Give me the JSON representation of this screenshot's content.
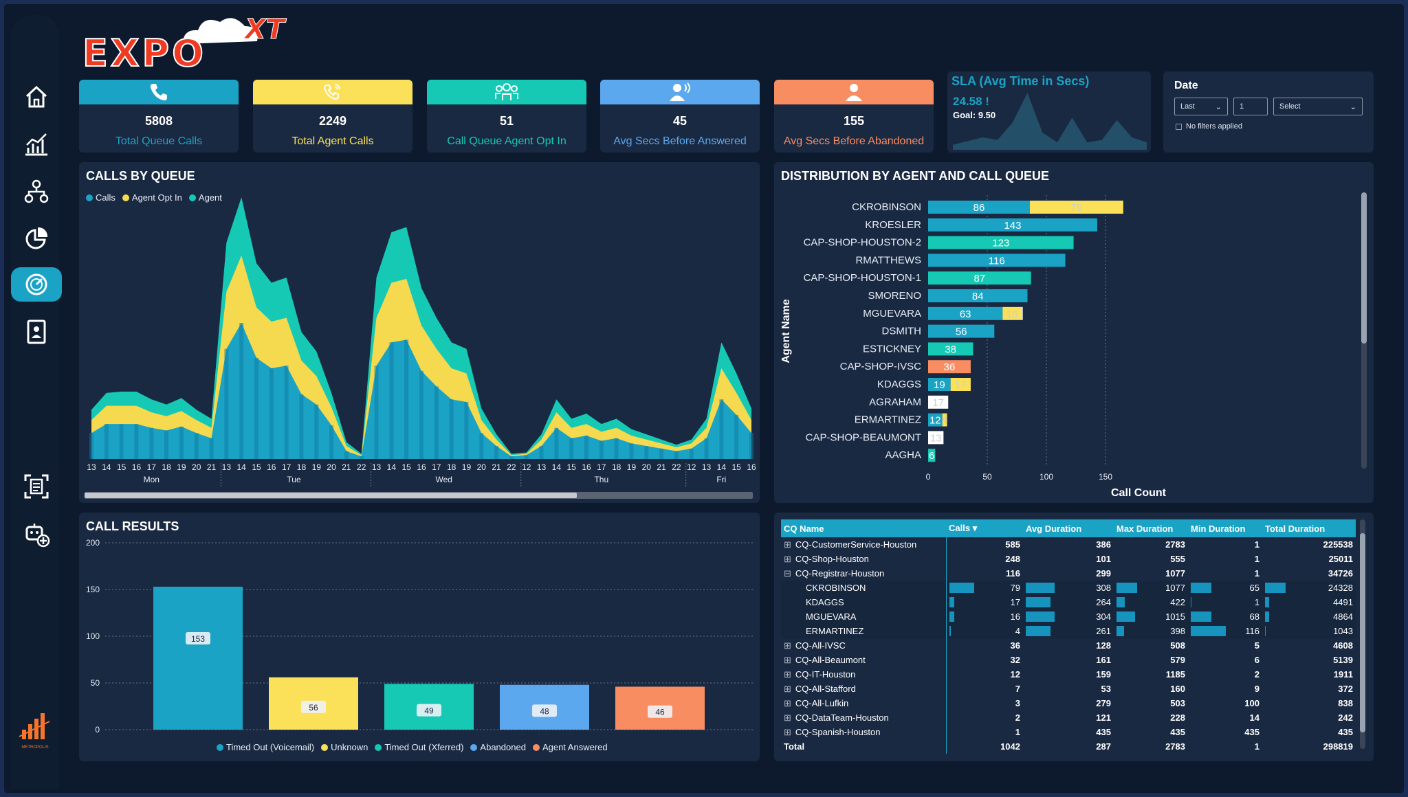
{
  "brand": {
    "logo_text": "EXPO",
    "logo_suffix": "XT",
    "footer_logo_text": "METROPOLIS"
  },
  "colors": {
    "calls": "#1ba3c6",
    "agent_opt_in": "#f5d94e",
    "agent": "#16c9b5",
    "abandoned": "#5ba8ee",
    "agent_answered": "#f98d62",
    "unknown": "#fbe05a"
  },
  "nav": [
    {
      "name": "home-icon"
    },
    {
      "name": "analytics-icon"
    },
    {
      "name": "org-chart-icon"
    },
    {
      "name": "pie-chart-icon"
    },
    {
      "name": "gauge-icon"
    },
    {
      "name": "contact-card-icon"
    },
    {
      "name": "report-scan-icon"
    },
    {
      "name": "bot-add-icon"
    }
  ],
  "kpis": [
    {
      "value": "5808",
      "label": "Total Queue Calls",
      "head_color": "#1ba3c6",
      "label_color": "#1ba3c6",
      "icon": "phone-icon"
    },
    {
      "value": "2249",
      "label": "Total Agent Calls",
      "head_color": "#fbe05a",
      "label_color": "#fbe05a",
      "icon": "phone-ringing-icon"
    },
    {
      "value": "51",
      "label": "Call Queue Agent Opt In",
      "head_color": "#16c9b5",
      "label_color": "#16c9b5",
      "icon": "group-icon"
    },
    {
      "value": "45",
      "label": "Avg Secs Before Answered",
      "head_color": "#5ba8ee",
      "label_color": "#5ba8ee",
      "icon": "speaker-person-icon"
    },
    {
      "value": "155",
      "label": "Avg Secs Before Abandoned",
      "head_color": "#f98d62",
      "label_color": "#f98d62",
      "icon": "person-icon"
    }
  ],
  "sla": {
    "title": "SLA (Avg Time in Secs)",
    "value": "24.58",
    "alert": "!",
    "goal": "Goal: 9.50",
    "sparkline": [
      4,
      7,
      10,
      8,
      22,
      46,
      14,
      6,
      26,
      6,
      8,
      24,
      10,
      6
    ]
  },
  "date_filter": {
    "title": "Date",
    "option1": "Last",
    "option2": "1",
    "option3": "Select",
    "note": "No filters applied"
  },
  "calls_by_queue": {
    "title": "CALLS BY QUEUE",
    "legend": [
      {
        "label": "Calls",
        "color": "#1ba3c6"
      },
      {
        "label": "Agent Opt In",
        "color": "#f5d94e"
      },
      {
        "label": "Agent",
        "color": "#16c9b5"
      }
    ],
    "days": [
      "Mon",
      "Tue",
      "Wed",
      "Thu",
      "Fri"
    ],
    "hour_labels": [
      "13",
      "14",
      "15",
      "16",
      "17",
      "18",
      "19",
      "20",
      "21",
      "13",
      "14",
      "15",
      "16",
      "17",
      "18",
      "19",
      "20",
      "21",
      "22",
      "13",
      "14",
      "15",
      "16",
      "17",
      "18",
      "19",
      "20",
      "21",
      "22",
      "12",
      "13",
      "14",
      "15",
      "16",
      "17",
      "18",
      "19",
      "20",
      "21",
      "22",
      "12",
      "13",
      "14",
      "15",
      "16"
    ]
  },
  "chart_data": [
    {
      "type": "area",
      "title": "CALLS BY QUEUE",
      "x": [
        "Mon 13",
        "Mon 14",
        "Mon 15",
        "Mon 16",
        "Mon 17",
        "Mon 18",
        "Mon 19",
        "Mon 20",
        "Mon 21",
        "Tue 13",
        "Tue 14",
        "Tue 15",
        "Tue 16",
        "Tue 17",
        "Tue 18",
        "Tue 19",
        "Tue 20",
        "Tue 21",
        "Tue 22",
        "Wed 13",
        "Wed 14",
        "Wed 15",
        "Wed 16",
        "Wed 17",
        "Wed 18",
        "Wed 19",
        "Wed 20",
        "Wed 21",
        "Wed 22",
        "Thu 12",
        "Thu 13",
        "Thu 14",
        "Thu 15",
        "Thu 16",
        "Thu 17",
        "Thu 18",
        "Thu 19",
        "Thu 20",
        "Thu 21",
        "Thu 22",
        "Fri 12",
        "Fri 13",
        "Fri 14",
        "Fri 15",
        "Fri 16"
      ],
      "series": [
        {
          "name": "Calls",
          "values": [
            20,
            27,
            27,
            27,
            24,
            22,
            25,
            20,
            16,
            85,
            105,
            78,
            70,
            72,
            50,
            42,
            26,
            6,
            2,
            72,
            90,
            92,
            68,
            56,
            46,
            44,
            20,
            10,
            2,
            3,
            10,
            24,
            16,
            18,
            14,
            16,
            12,
            10,
            8,
            6,
            8,
            16,
            46,
            34,
            20
          ]
        },
        {
          "name": "Agent Opt In",
          "values": [
            10,
            14,
            14,
            14,
            12,
            11,
            12,
            10,
            8,
            44,
            52,
            39,
            36,
            37,
            26,
            22,
            14,
            4,
            1,
            37,
            46,
            47,
            35,
            29,
            24,
            22,
            10,
            5,
            1,
            1,
            5,
            12,
            8,
            9,
            7,
            8,
            6,
            5,
            4,
            3,
            4,
            8,
            24,
            17,
            10
          ]
        },
        {
          "name": "Agent",
          "values": [
            8,
            10,
            11,
            11,
            10,
            9,
            10,
            8,
            7,
            38,
            45,
            34,
            30,
            31,
            22,
            19,
            11,
            3,
            1,
            31,
            39,
            40,
            29,
            24,
            20,
            19,
            9,
            4,
            1,
            1,
            4,
            10,
            7,
            8,
            6,
            7,
            5,
            4,
            3,
            2,
            3,
            7,
            20,
            15,
            9
          ]
        }
      ]
    },
    {
      "type": "bar",
      "title": "DISTRIBUTION BY AGENT AND CALL QUEUE",
      "xlabel": "Call Count",
      "ylabel": "Agent Name",
      "xlim": [
        0,
        175
      ],
      "x_ticks": [
        0,
        50,
        100,
        150
      ],
      "categories": [
        "CKROBINSON",
        "KROESLER",
        "CAP-SHOP-HOUSTON-2",
        "RMATTHEWS",
        "CAP-SHOP-HOUSTON-1",
        "SMORENO",
        "MGUEVARA",
        "DSMITH",
        "ESTICKNEY",
        "CAP-SHOP-IVSC",
        "KDAGGS",
        "AGRAHAM",
        "ERMARTINEZ",
        "CAP-SHOP-BEAUMONT",
        "AAGHA"
      ],
      "segments": [
        [
          {
            "v": 86,
            "c": "#1ba3c6"
          },
          {
            "v": 79,
            "c": "#fbe05a"
          }
        ],
        [
          {
            "v": 143,
            "c": "#1ba3c6"
          }
        ],
        [
          {
            "v": 123,
            "c": "#16c9b5"
          }
        ],
        [
          {
            "v": 116,
            "c": "#1ba3c6"
          }
        ],
        [
          {
            "v": 87,
            "c": "#16c9b5"
          }
        ],
        [
          {
            "v": 84,
            "c": "#1ba3c6"
          }
        ],
        [
          {
            "v": 63,
            "c": "#1ba3c6"
          },
          {
            "v": 16,
            "c": "#fbe05a"
          },
          {
            "v": 1,
            "c": "#ffffff"
          }
        ],
        [
          {
            "v": 56,
            "c": "#1ba3c6"
          }
        ],
        [
          {
            "v": 38,
            "c": "#16c9b5"
          }
        ],
        [
          {
            "v": 36,
            "c": "#f98d62"
          }
        ],
        [
          {
            "v": 19,
            "c": "#1ba3c6"
          },
          {
            "v": 17,
            "c": "#fbe05a"
          }
        ],
        [
          {
            "v": 17,
            "c": "#ffffff"
          }
        ],
        [
          {
            "v": 12,
            "c": "#1ba3c6"
          },
          {
            "v": 4,
            "c": "#fbe05a"
          }
        ],
        [
          {
            "v": 13,
            "c": "#ffffff"
          }
        ],
        [
          {
            "v": 6,
            "c": "#16c9b5"
          }
        ]
      ]
    },
    {
      "type": "bar",
      "title": "CALL RESULTS",
      "ylim": [
        0,
        200
      ],
      "y_ticks": [
        0,
        50,
        100,
        150,
        200
      ],
      "categories": [
        "Timed Out (Voicemail)",
        "Unknown",
        "Timed Out (Xferred)",
        "Abandoned",
        "Agent Answered"
      ],
      "values": [
        153,
        56,
        49,
        48,
        46
      ],
      "colors": [
        "#1ba3c6",
        "#fbe05a",
        "#16c9b5",
        "#5ba8ee",
        "#f98d62"
      ]
    }
  ],
  "cq_table": {
    "headers": [
      "CQ Name",
      "Calls",
      "Avg Duration",
      "Max Duration",
      "Min Duration",
      "Total Duration"
    ],
    "rows": [
      {
        "type": "parent",
        "toggle": "⊞",
        "name": "CQ-CustomerService-Houston",
        "calls": "585",
        "avg": "386",
        "max": "2783",
        "min": "1",
        "total": "225538"
      },
      {
        "type": "parent",
        "toggle": "⊞",
        "name": "CQ-Shop-Houston",
        "calls": "248",
        "avg": "101",
        "max": "555",
        "min": "1",
        "total": "25011"
      },
      {
        "type": "parent",
        "toggle": "⊟",
        "name": "CQ-Registrar-Houston",
        "calls": "116",
        "avg": "299",
        "max": "1077",
        "min": "1",
        "total": "34726"
      },
      {
        "type": "child",
        "toggle": "",
        "name": "CKROBINSON",
        "calls": "79",
        "avg": "308",
        "max": "1077",
        "min": "65",
        "total": "24328",
        "f_calls": 0.6,
        "f_avg": 0.7,
        "f_max": 0.5,
        "f_min": 0.5,
        "f_total": 0.5
      },
      {
        "type": "child",
        "toggle": "",
        "name": "KDAGGS",
        "calls": "17",
        "avg": "264",
        "max": "422",
        "min": "1",
        "total": "4491",
        "f_calls": 0.12,
        "f_avg": 0.6,
        "f_max": 0.2,
        "f_min": 0.02,
        "f_total": 0.1
      },
      {
        "type": "child",
        "toggle": "",
        "name": "MGUEVARA",
        "calls": "16",
        "avg": "304",
        "max": "1015",
        "min": "68",
        "total": "4864",
        "f_calls": 0.12,
        "f_avg": 0.7,
        "f_max": 0.45,
        "f_min": 0.5,
        "f_total": 0.1
      },
      {
        "type": "child",
        "toggle": "",
        "name": "ERMARTINEZ",
        "calls": "4",
        "avg": "261",
        "max": "398",
        "min": "116",
        "total": "1043",
        "f_calls": 0.03,
        "f_avg": 0.6,
        "f_max": 0.18,
        "f_min": 0.85,
        "f_total": 0.02
      },
      {
        "type": "parent",
        "toggle": "⊞",
        "name": "CQ-All-IVSC",
        "calls": "36",
        "avg": "128",
        "max": "508",
        "min": "5",
        "total": "4608"
      },
      {
        "type": "parent",
        "toggle": "⊞",
        "name": "CQ-All-Beaumont",
        "calls": "32",
        "avg": "161",
        "max": "579",
        "min": "6",
        "total": "5139"
      },
      {
        "type": "parent",
        "toggle": "⊞",
        "name": "CQ-IT-Houston",
        "calls": "12",
        "avg": "159",
        "max": "1185",
        "min": "2",
        "total": "1911"
      },
      {
        "type": "parent",
        "toggle": "⊞",
        "name": "CQ-All-Stafford",
        "calls": "7",
        "avg": "53",
        "max": "160",
        "min": "9",
        "total": "372"
      },
      {
        "type": "parent",
        "toggle": "⊞",
        "name": "CQ-All-Lufkin",
        "calls": "3",
        "avg": "279",
        "max": "503",
        "min": "100",
        "total": "838"
      },
      {
        "type": "parent",
        "toggle": "⊞",
        "name": "CQ-DataTeam-Houston",
        "calls": "2",
        "avg": "121",
        "max": "228",
        "min": "14",
        "total": "242"
      },
      {
        "type": "parent",
        "toggle": "⊞",
        "name": "CQ-Spanish-Houston",
        "calls": "1",
        "avg": "435",
        "max": "435",
        "min": "435",
        "total": "435"
      },
      {
        "type": "total",
        "toggle": "",
        "name": "Total",
        "calls": "1042",
        "avg": "287",
        "max": "2783",
        "min": "1",
        "total": "298819"
      }
    ]
  }
}
